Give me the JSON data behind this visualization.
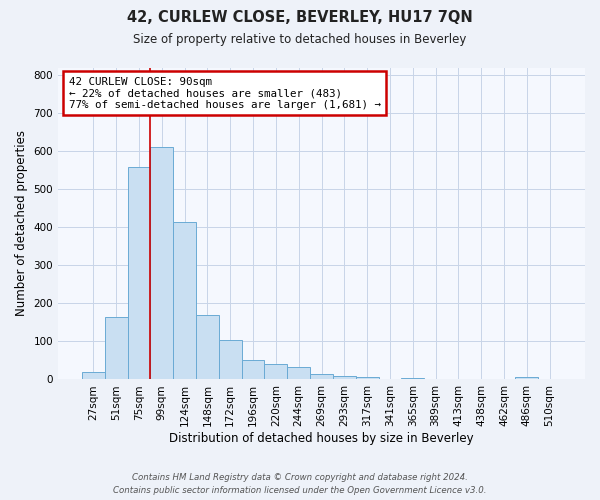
{
  "title": "42, CURLEW CLOSE, BEVERLEY, HU17 7QN",
  "subtitle": "Size of property relative to detached houses in Beverley",
  "xlabel": "Distribution of detached houses by size in Beverley",
  "ylabel": "Number of detached properties",
  "bar_labels": [
    "27sqm",
    "51sqm",
    "75sqm",
    "99sqm",
    "124sqm",
    "148sqm",
    "172sqm",
    "196sqm",
    "220sqm",
    "244sqm",
    "269sqm",
    "293sqm",
    "317sqm",
    "341sqm",
    "365sqm",
    "389sqm",
    "413sqm",
    "438sqm",
    "462sqm",
    "486sqm",
    "510sqm"
  ],
  "bar_values": [
    20,
    165,
    558,
    612,
    415,
    170,
    103,
    52,
    40,
    32,
    14,
    10,
    7,
    0,
    5,
    0,
    0,
    0,
    0,
    7,
    0
  ],
  "bar_color": "#c9dff2",
  "bar_edge_color": "#6aaad4",
  "ylim": [
    0,
    820
  ],
  "yticks": [
    0,
    100,
    200,
    300,
    400,
    500,
    600,
    700,
    800
  ],
  "vline_x_index": 3,
  "vline_color": "#cc0000",
  "annotation_title": "42 CURLEW CLOSE: 90sqm",
  "annotation_line1": "← 22% of detached houses are smaller (483)",
  "annotation_line2": "77% of semi-detached houses are larger (1,681) →",
  "annotation_box_color": "#cc0000",
  "footer_line1": "Contains HM Land Registry data © Crown copyright and database right 2024.",
  "footer_line2": "Contains public sector information licensed under the Open Government Licence v3.0.",
  "bg_color": "#eef2f9",
  "plot_bg_color": "#f5f8fe",
  "grid_color": "#c8d4e8"
}
